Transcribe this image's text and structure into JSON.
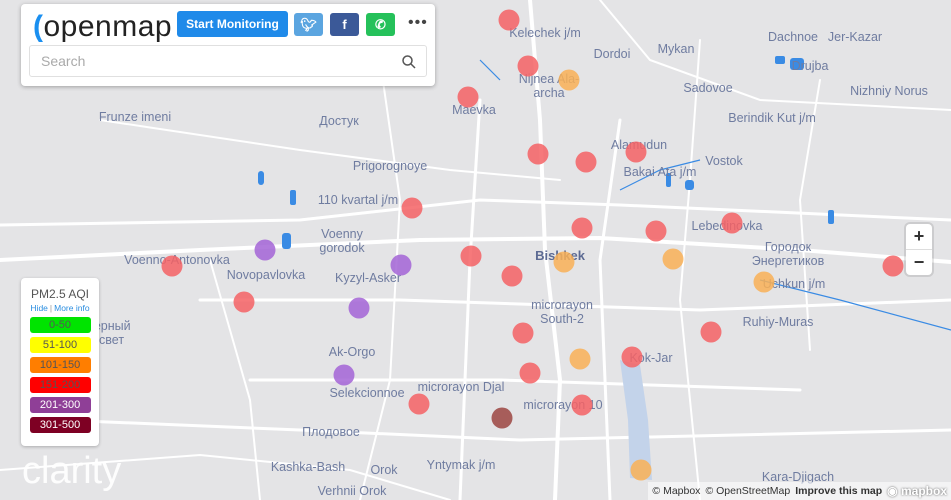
{
  "header": {
    "logo_text": "openmap",
    "start_button": "Start Monitoring",
    "twitter_icon": "twitter-icon",
    "facebook_icon": "facebook-icon",
    "whatsapp_icon": "whatsapp-icon",
    "more_label": "•••",
    "search_placeholder": "Search",
    "search_value": ""
  },
  "legend": {
    "title": "PM2.5 AQI",
    "hide": "Hide",
    "sep": "|",
    "more_info": "More info",
    "items": [
      {
        "label": "0-50",
        "color": "#00e400"
      },
      {
        "label": "51-100",
        "color": "#ffff00"
      },
      {
        "label": "101-150",
        "color": "#ff7e00"
      },
      {
        "label": "151-200",
        "color": "#ff0000"
      },
      {
        "label": "201-300",
        "color": "#8f3f97"
      },
      {
        "label": "301-500",
        "color": "#7e0023"
      }
    ]
  },
  "map": {
    "labels": [
      "Kelechek j/m",
      "Dordoi",
      "Mykan",
      "Dachnoe",
      "Jer-Kazar",
      "Drujba",
      "Nizhniy Norus",
      "Nijnea Ala-archa",
      "Sadovoe",
      "Maevka",
      "Frunze imeni",
      "Достук",
      "Berindik Kut j/m",
      "Alamudun",
      "Bakai Ata j/m",
      "Vostok",
      "Prigorognoye",
      "110 kvartal j/m",
      "Voenny gorodok",
      "Voenno-Antonovka",
      "Novopavlovka",
      "Kyzyl-Asker",
      "Bishkek",
      "Lebedinovka",
      "Городок Энергетиков",
      "Uchkun j/m",
      "microrayon South-2",
      "Ruhiy-Muras",
      "Ak-Orgo",
      "Kok-Jar",
      "Selekcionnoe",
      "microrayon Djal",
      "microrayon 10",
      "Плодовое",
      "Kashka-Bash",
      "Orok",
      "Yntymak j/m",
      "Kara-Djigach",
      "Verhnii Orok",
      "Северный Рассвет"
    ],
    "zoom_in": "+",
    "zoom_out": "−"
  },
  "attribution": {
    "mapbox": "© Mapbox",
    "osm": "© OpenStreetMap",
    "improve": "Improve this map",
    "brand": "mapbox"
  },
  "watermark": "clarity"
}
